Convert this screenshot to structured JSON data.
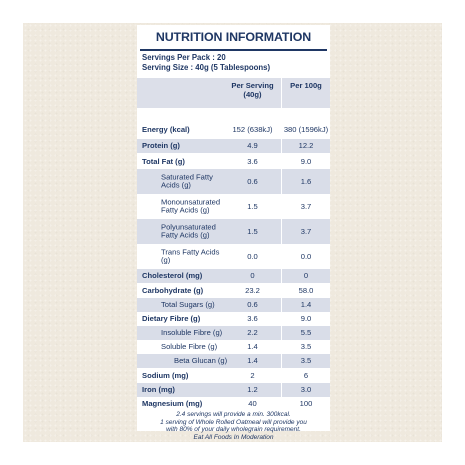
{
  "title": "NUTRITION INFORMATION",
  "servings_per_pack": "Servings Per Pack : 20",
  "serving_size": "Serving Size : 40g (5 Tablespoons)",
  "col1_header": "Per Serving (40g)",
  "col2_header": "Per 100g",
  "rows": [
    {
      "name": "Energy (kcal)",
      "v1": "152 (638kJ)",
      "v2": "380 (1596kJ)"
    },
    {
      "name": "Protein (g)",
      "v1": "4.9",
      "v2": "12.2"
    },
    {
      "name": "Total Fat (g)",
      "v1": "3.6",
      "v2": "9.0"
    },
    {
      "name": "Saturated Fatty Acids (g)",
      "v1": "0.6",
      "v2": "1.6"
    },
    {
      "name": "Monounsaturated Fatty Acids (g)",
      "v1": "1.5",
      "v2": "3.7"
    },
    {
      "name": "Polyunsaturated Fatty Acids (g)",
      "v1": "1.5",
      "v2": "3.7"
    },
    {
      "name": "Trans Fatty Acids (g)",
      "v1": "0.0",
      "v2": "0.0"
    },
    {
      "name": "Cholesterol (mg)",
      "v1": "0",
      "v2": "0"
    },
    {
      "name": "Carbohydrate (g)",
      "v1": "23.2",
      "v2": "58.0"
    },
    {
      "name": "Total Sugars (g)",
      "v1": "0.6",
      "v2": "1.4"
    },
    {
      "name": "Dietary Fibre (g)",
      "v1": "3.6",
      "v2": "9.0"
    },
    {
      "name": "Insoluble Fibre (g)",
      "v1": "2.2",
      "v2": "5.5"
    },
    {
      "name": "Soluble Fibre (g)",
      "v1": "1.4",
      "v2": "3.5"
    },
    {
      "name": "Beta Glucan (g)",
      "v1": "1.4",
      "v2": "3.5"
    },
    {
      "name": "Sodium (mg)",
      "v1": "2",
      "v2": "6"
    },
    {
      "name": "Iron (mg)",
      "v1": "1.2",
      "v2": "3.0"
    },
    {
      "name": "Magnesium (mg)",
      "v1": "40",
      "v2": "100"
    }
  ],
  "footer": [
    "2.4 servings will provide a min. 300kcal.",
    "1 serving of Whole Rolled Oatmeal will provide you",
    "with 80% of your daily wholegrain requirement.",
    "Eat All Foods In Moderation"
  ],
  "colors": {
    "text": "#1f3764",
    "shade": "#d9dde8",
    "background": "#efe9de"
  }
}
